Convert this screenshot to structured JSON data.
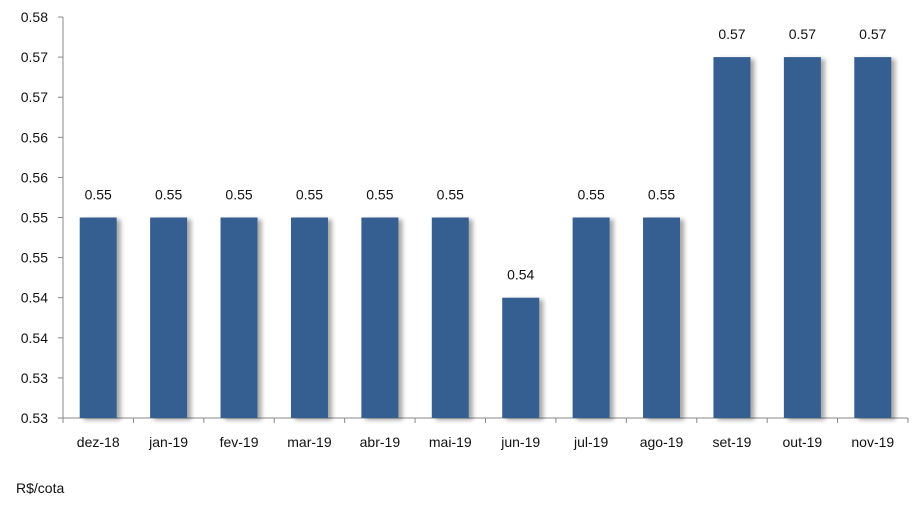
{
  "chart_data": {
    "type": "bar",
    "categories": [
      "dez-18",
      "jan-19",
      "fev-19",
      "mar-19",
      "abr-19",
      "mai-19",
      "jun-19",
      "jul-19",
      "ago-19",
      "set-19",
      "out-19",
      "nov-19"
    ],
    "values": [
      0.55,
      0.55,
      0.55,
      0.55,
      0.55,
      0.55,
      0.54,
      0.55,
      0.55,
      0.57,
      0.57,
      0.57
    ],
    "plot_values": [
      0.55,
      0.55,
      0.55,
      0.55,
      0.55,
      0.55,
      0.54,
      0.55,
      0.55,
      0.57,
      0.57,
      0.57
    ],
    "data_labels": [
      "0.55",
      "0.55",
      "0.55",
      "0.55",
      "0.55",
      "0.55",
      "0.54",
      "0.55",
      "0.55",
      "0.57",
      "0.57",
      "0.57"
    ],
    "y_ticks": [
      {
        "value": 0.525,
        "label": "0.53"
      },
      {
        "value": 0.53,
        "label": "0.53"
      },
      {
        "value": 0.535,
        "label": "0.54"
      },
      {
        "value": 0.54,
        "label": "0.54"
      },
      {
        "value": 0.545,
        "label": "0.55"
      },
      {
        "value": 0.55,
        "label": "0.55"
      },
      {
        "value": 0.555,
        "label": "0.56"
      },
      {
        "value": 0.56,
        "label": "0.56"
      },
      {
        "value": 0.565,
        "label": "0.57"
      },
      {
        "value": 0.57,
        "label": "0.57"
      },
      {
        "value": 0.575,
        "label": "0.58"
      }
    ],
    "ylim": [
      0.525,
      0.575
    ],
    "title": "",
    "xlabel": "",
    "ylabel": "",
    "unit_label": "R$/cota",
    "grid": false,
    "colors": {
      "bar": "#345E90",
      "axis": "#888888",
      "text": "#111111"
    }
  }
}
